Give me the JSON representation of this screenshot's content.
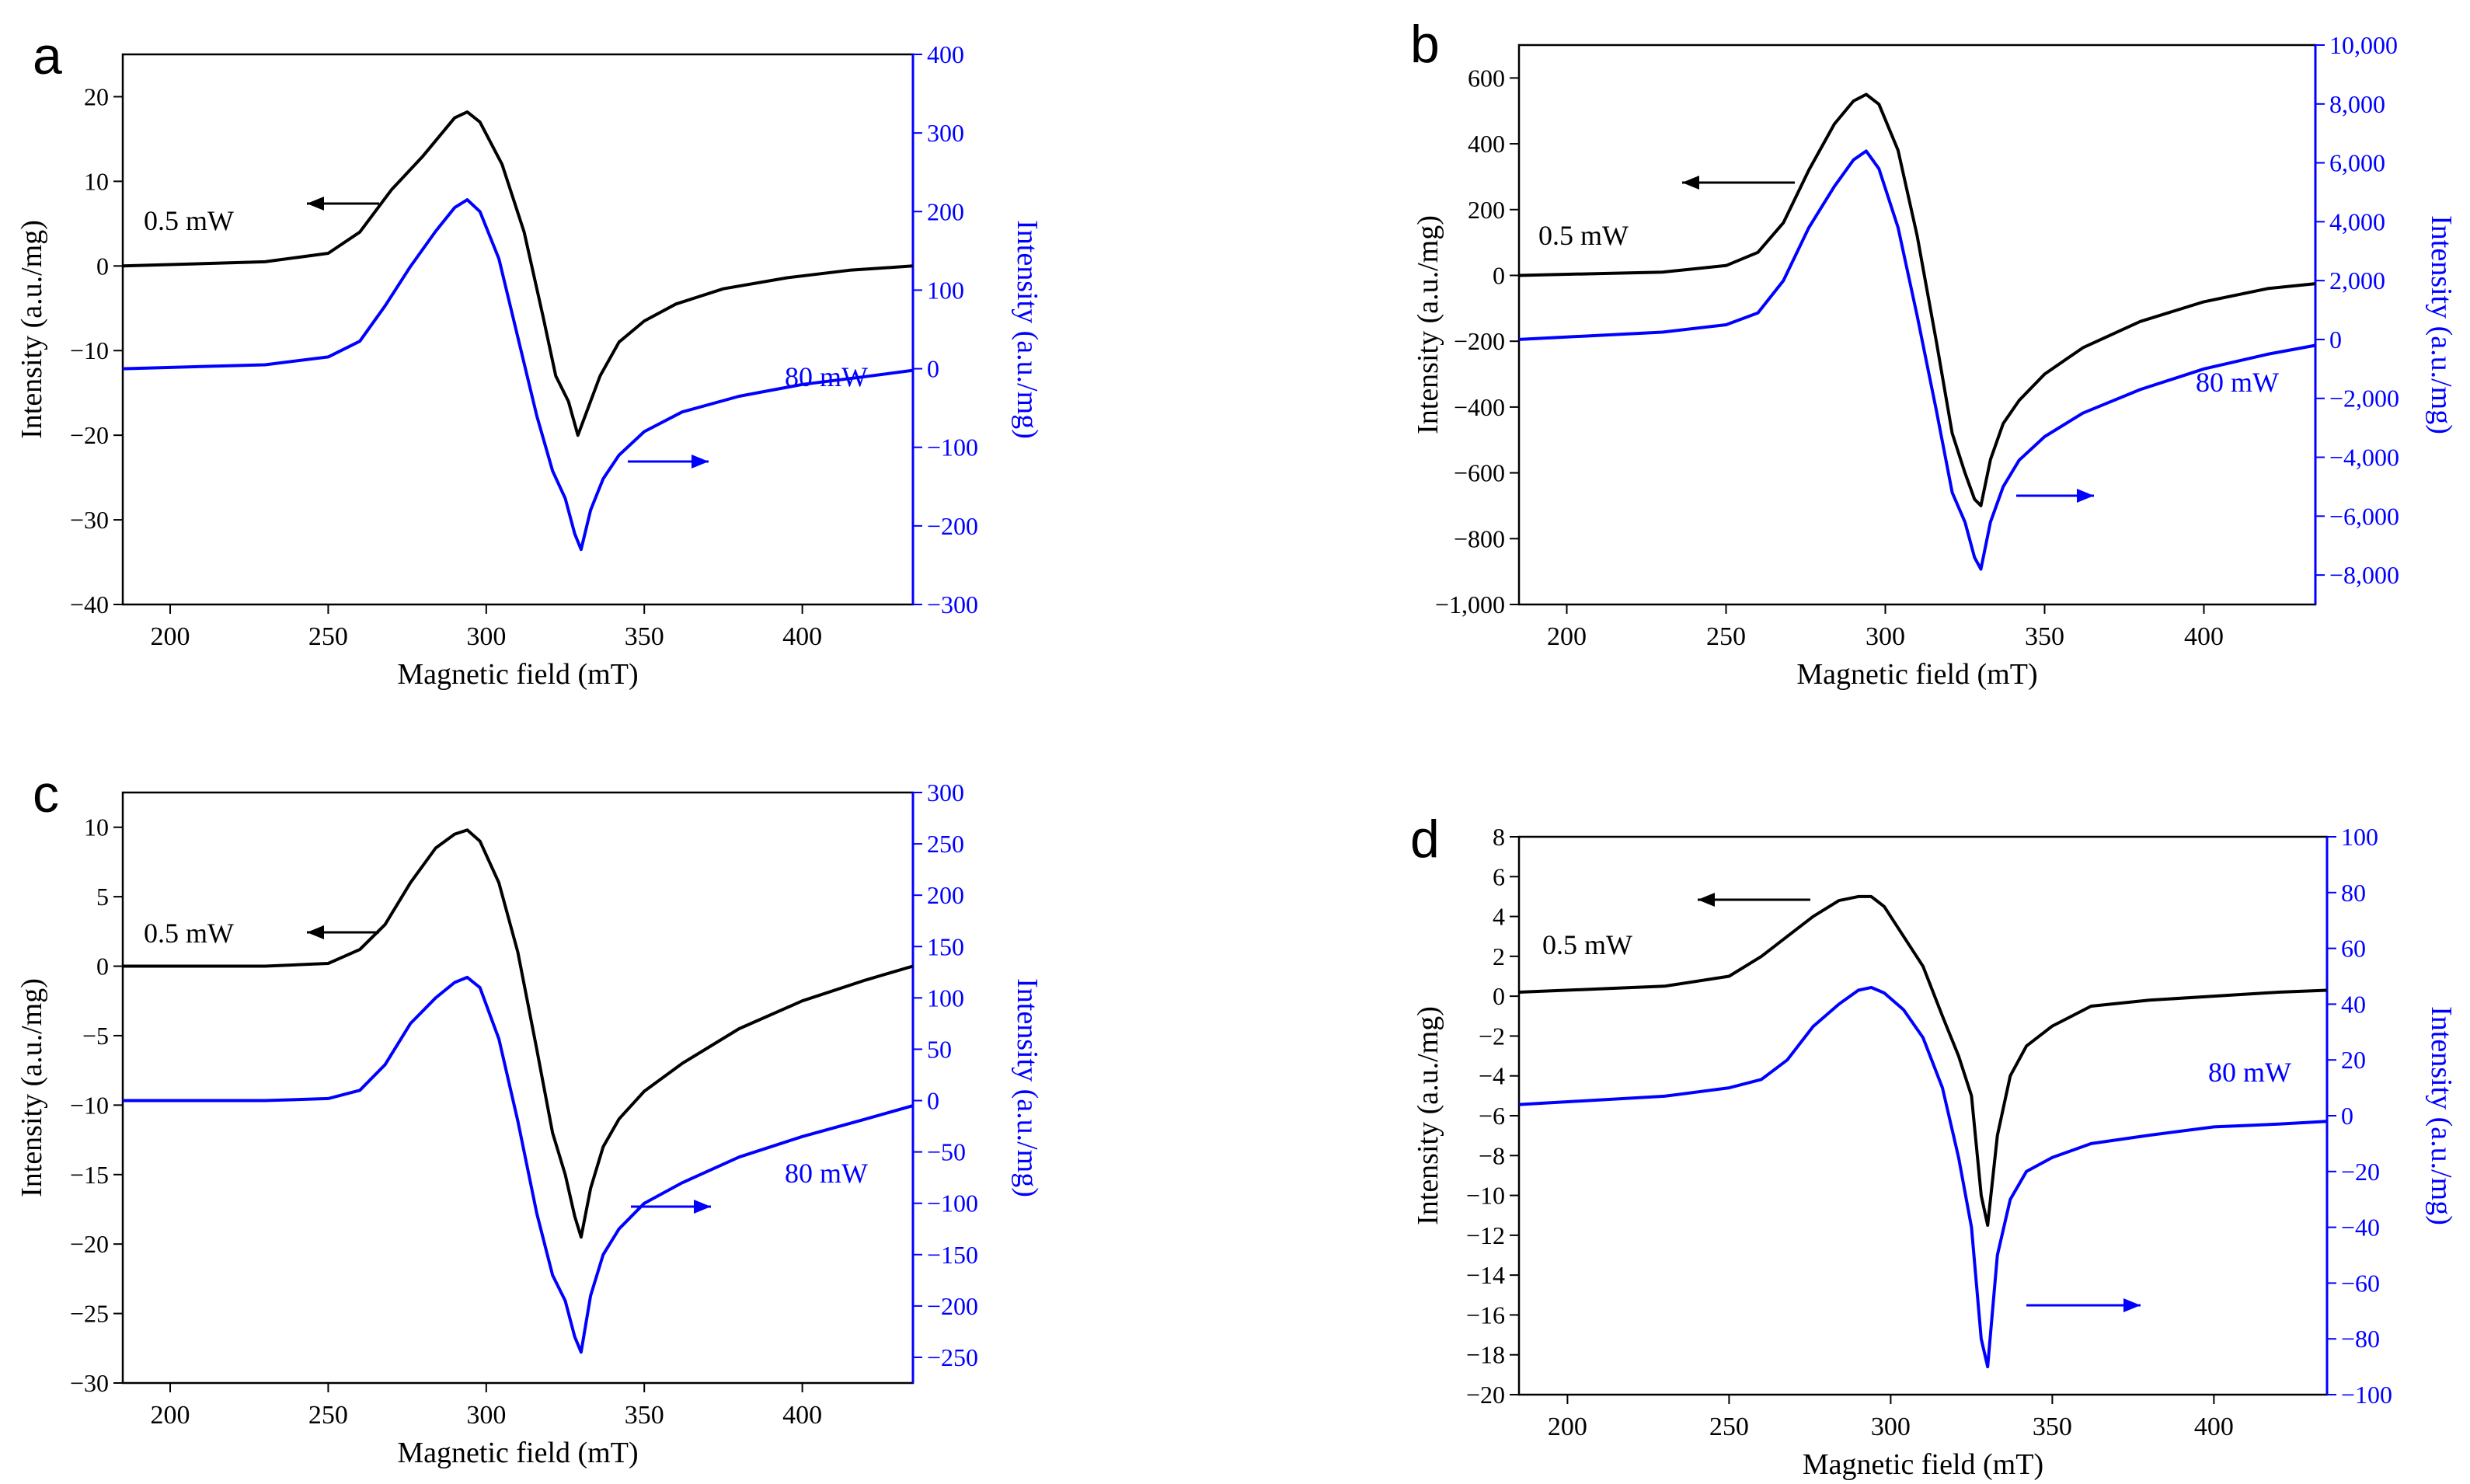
{
  "chart_data": [
    {
      "type": "line",
      "panel": "a",
      "xlabel": "Magnetic field (mT)",
      "ylabel_left": "Intensity (a.u./mg)",
      "ylabel_right": "Intensity (a.u./mg)",
      "xlim": [
        185,
        435
      ],
      "xticks": [
        200,
        250,
        300,
        350,
        400
      ],
      "ylim_left": [
        -40,
        25
      ],
      "yticks_left": [
        -40,
        -30,
        -20,
        -10,
        0,
        10,
        20
      ],
      "ylim_right": [
        -300,
        400
      ],
      "yticks_right": [
        -300,
        -200,
        -100,
        0,
        100,
        200,
        300,
        400
      ],
      "tick_labels_left": [
        "−40",
        "−30",
        "−20",
        "−10",
        "0",
        "10",
        "20"
      ],
      "tick_labels_right": [
        "−300",
        "−200",
        "−100",
        "0",
        "100",
        "200",
        "300",
        "400"
      ],
      "series": [
        {
          "name": "0.5 mW",
          "axis": "left",
          "color": "#000000",
          "x": [
            185,
            230,
            250,
            260,
            270,
            280,
            290,
            294,
            298,
            305,
            312,
            318,
            322,
            326,
            329,
            332,
            336,
            342,
            350,
            360,
            375,
            395,
            415,
            435
          ],
          "y": [
            0,
            0.5,
            1.5,
            4,
            9,
            13,
            17.5,
            18.2,
            17,
            12,
            4,
            -6,
            -13,
            -16,
            -20,
            -17,
            -13,
            -9,
            -6.5,
            -4.5,
            -2.7,
            -1.4,
            -0.5,
            0
          ]
        },
        {
          "name": "80 mW",
          "axis": "right",
          "color": "#0000ff",
          "x": [
            185,
            230,
            250,
            260,
            268,
            276,
            284,
            290,
            294,
            298,
            304,
            310,
            316,
            321,
            325,
            328,
            330,
            333,
            337,
            342,
            350,
            362,
            380,
            400,
            420,
            435
          ],
          "y": [
            0,
            5,
            15,
            35,
            80,
            130,
            175,
            205,
            215,
            200,
            140,
            40,
            -60,
            -130,
            -165,
            -210,
            -230,
            -180,
            -140,
            -110,
            -80,
            -55,
            -35,
            -20,
            -10,
            -2
          ]
        }
      ],
      "labels": {
        "low_power": "0.5 mW",
        "high_power": "80 mW"
      }
    },
    {
      "type": "line",
      "panel": "b",
      "xlabel": "Magnetic field (mT)",
      "ylabel_left": "Intensity (a.u./mg)",
      "ylabel_right": "Intensity (a.u./mg)",
      "xlim": [
        185,
        435
      ],
      "xticks": [
        200,
        250,
        300,
        350,
        400
      ],
      "ylim_left": [
        -1000,
        700
      ],
      "yticks_left": [
        -1000,
        -800,
        -600,
        -400,
        -200,
        0,
        200,
        400,
        600
      ],
      "ylim_right": [
        -9000,
        10000
      ],
      "yticks_right": [
        -8000,
        -6000,
        -4000,
        -2000,
        0,
        2000,
        4000,
        6000,
        8000,
        10000
      ],
      "tick_labels_left": [
        "−1,000",
        "−800",
        "−600",
        "−400",
        "−200",
        "0",
        "200",
        "400",
        "600"
      ],
      "tick_labels_right": [
        "−8,000",
        "−6,000",
        "−4,000",
        "−2,000",
        "0",
        "2,000",
        "4,000",
        "6,000",
        "8,000",
        "10,000"
      ],
      "series": [
        {
          "name": "0.5 mW",
          "axis": "left",
          "color": "#000000",
          "x": [
            185,
            230,
            250,
            260,
            268,
            276,
            284,
            290,
            294,
            298,
            304,
            310,
            316,
            321,
            325,
            328,
            330,
            333,
            337,
            342,
            350,
            362,
            380,
            400,
            420,
            435
          ],
          "y": [
            0,
            10,
            30,
            70,
            160,
            320,
            460,
            530,
            550,
            520,
            380,
            120,
            -200,
            -480,
            -600,
            -680,
            -700,
            -560,
            -450,
            -380,
            -300,
            -220,
            -140,
            -80,
            -40,
            -25
          ]
        },
        {
          "name": "80 mW",
          "axis": "right",
          "color": "#0000ff",
          "x": [
            185,
            230,
            250,
            260,
            268,
            276,
            284,
            290,
            294,
            298,
            304,
            310,
            316,
            321,
            325,
            328,
            330,
            333,
            337,
            342,
            350,
            362,
            380,
            400,
            420,
            435
          ],
          "y": [
            0,
            250,
            500,
            900,
            2000,
            3800,
            5200,
            6100,
            6400,
            5800,
            3800,
            800,
            -2400,
            -5200,
            -6200,
            -7400,
            -7800,
            -6200,
            -5000,
            -4100,
            -3300,
            -2500,
            -1700,
            -1000,
            -500,
            -200
          ]
        }
      ],
      "labels": {
        "low_power": "0.5 mW",
        "high_power": "80 mW"
      }
    },
    {
      "type": "line",
      "panel": "c",
      "xlabel": "Magnetic field (mT)",
      "ylabel_left": "Intensity (a.u./mg)",
      "ylabel_right": "Intensity (a.u./mg)",
      "xlim": [
        185,
        435
      ],
      "xticks": [
        200,
        250,
        300,
        350,
        400
      ],
      "ylim_left": [
        -30,
        12.5
      ],
      "yticks_left": [
        -30,
        -25,
        -20,
        -15,
        -10,
        -5,
        0,
        5,
        10
      ],
      "ylim_right": [
        -275,
        300
      ],
      "yticks_right": [
        -250,
        -200,
        -150,
        -100,
        -50,
        0,
        50,
        100,
        150,
        200,
        250,
        300
      ],
      "tick_labels_left": [
        "−30",
        "−25",
        "−20",
        "−15",
        "−10",
        "−5",
        "0",
        "5",
        "10"
      ],
      "tick_labels_right": [
        "−250",
        "−200",
        "−150",
        "−100",
        "−50",
        "0",
        "50",
        "100",
        "150",
        "200",
        "250",
        "300"
      ],
      "series": [
        {
          "name": "0.5 mW",
          "axis": "left",
          "color": "#000000",
          "x": [
            185,
            230,
            250,
            260,
            268,
            276,
            284,
            290,
            294,
            298,
            304,
            310,
            316,
            321,
            325,
            328,
            330,
            333,
            337,
            342,
            350,
            362,
            380,
            400,
            420,
            435
          ],
          "y": [
            0,
            0,
            0.2,
            1.2,
            3,
            6,
            8.5,
            9.5,
            9.8,
            9,
            6,
            1,
            -6,
            -12,
            -15,
            -18,
            -19.5,
            -16,
            -13,
            -11,
            -9,
            -7,
            -4.5,
            -2.5,
            -1,
            0
          ]
        },
        {
          "name": "80 mW",
          "axis": "right",
          "color": "#0000ff",
          "x": [
            185,
            230,
            250,
            260,
            268,
            276,
            284,
            290,
            294,
            298,
            304,
            310,
            316,
            321,
            325,
            328,
            330,
            333,
            337,
            342,
            350,
            362,
            380,
            400,
            420,
            435
          ],
          "y": [
            0,
            0,
            2,
            10,
            35,
            75,
            100,
            115,
            120,
            110,
            60,
            -20,
            -110,
            -170,
            -195,
            -230,
            -245,
            -190,
            -150,
            -125,
            -100,
            -80,
            -55,
            -35,
            -18,
            -5
          ]
        }
      ],
      "labels": {
        "low_power": "0.5 mW",
        "high_power": "80 mW"
      }
    },
    {
      "type": "line",
      "panel": "d",
      "xlabel": "Magnetic field (mT)",
      "ylabel_left": "Intensity (a.u./mg)",
      "ylabel_right": "Intensity (a.u./mg)",
      "xlim": [
        185,
        435
      ],
      "xticks": [
        200,
        250,
        300,
        350,
        400
      ],
      "ylim_left": [
        -20,
        8
      ],
      "yticks_left": [
        -20,
        -18,
        -16,
        -14,
        -12,
        -10,
        -8,
        -6,
        -4,
        -2,
        0,
        2,
        4,
        6,
        8
      ],
      "ylim_right": [
        -100,
        100
      ],
      "yticks_right": [
        -100,
        -80,
        -60,
        -40,
        -20,
        0,
        20,
        40,
        60,
        80,
        100
      ],
      "tick_labels_left": [
        "−20",
        "−18",
        "−16",
        "−14",
        "−12",
        "−10",
        "−8",
        "−6",
        "−4",
        "−2",
        "0",
        "2",
        "4",
        "6",
        "8"
      ],
      "tick_labels_right": [
        "−100",
        "−80",
        "−60",
        "−40",
        "−20",
        "0",
        "20",
        "40",
        "60",
        "80",
        "100"
      ],
      "series": [
        {
          "name": "0.5 mW",
          "axis": "left",
          "color": "#000000",
          "x": [
            185,
            230,
            250,
            260,
            268,
            276,
            284,
            290,
            294,
            298,
            304,
            310,
            316,
            321,
            325,
            328,
            330,
            333,
            337,
            342,
            350,
            362,
            380,
            400,
            420,
            435
          ],
          "y": [
            0.2,
            0.5,
            1,
            2,
            3,
            4,
            4.8,
            5,
            5,
            4.5,
            3,
            1.5,
            -1,
            -3,
            -5,
            -10,
            -11.5,
            -7,
            -4,
            -2.5,
            -1.5,
            -0.5,
            -0.2,
            0,
            0.2,
            0.3
          ]
        },
        {
          "name": "80 mW",
          "axis": "right",
          "color": "#0000ff",
          "x": [
            185,
            230,
            250,
            260,
            268,
            276,
            284,
            290,
            294,
            298,
            304,
            310,
            316,
            321,
            325,
            328,
            330,
            333,
            337,
            342,
            350,
            362,
            380,
            400,
            420,
            435
          ],
          "y": [
            4,
            7,
            10,
            13,
            20,
            32,
            40,
            45,
            46,
            44,
            38,
            28,
            10,
            -15,
            -40,
            -80,
            -90,
            -50,
            -30,
            -20,
            -15,
            -10,
            -7,
            -4,
            -3,
            -2
          ]
        }
      ],
      "labels": {
        "low_power": "0.5 mW",
        "high_power": "80 mW"
      }
    }
  ],
  "panel_letters": [
    "a",
    "b",
    "c",
    "d"
  ],
  "colors": {
    "left_axis": "#000000",
    "right_axis": "#0000ff"
  }
}
